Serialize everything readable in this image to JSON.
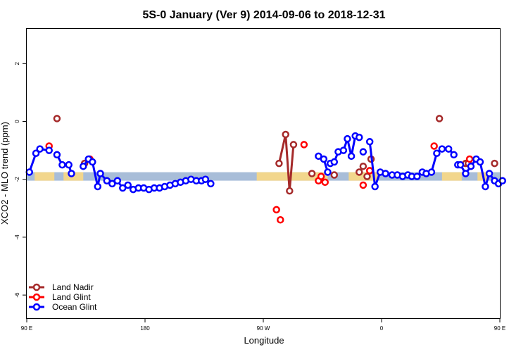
{
  "chart_data": {
    "type": "line",
    "title": "5S-0 January (Ver 9)   2014-09-06 to 2018-12-31",
    "xlabel": "Longitude",
    "ylabel": "XCO2 - MLO trend (ppm)",
    "xlim": [
      90,
      450
    ],
    "ylim": [
      -6.8,
      3.2
    ],
    "x_ticks": [
      {
        "value": 90,
        "label": "90 E"
      },
      {
        "value": 180,
        "label": "180"
      },
      {
        "value": 270,
        "label": "90 W"
      },
      {
        "value": 360,
        "label": "0"
      },
      {
        "value": 450,
        "label": "90 E"
      },
      {
        "value": 540,
        "label": "180"
      }
    ],
    "y_ticks": [
      {
        "value": 2,
        "label": "2"
      },
      {
        "value": 0,
        "label": "0"
      },
      {
        "value": -2,
        "label": "-2"
      },
      {
        "value": -4,
        "label": "-4"
      },
      {
        "value": -6,
        "label": "-6"
      }
    ],
    "legend_position": "bottom-left",
    "series": [
      {
        "name": "Land Nadir",
        "color": "#a52a2a",
        "points": [
          [
            113,
            0.1
          ],
          [
            134,
            -1.45
          ],
          [
            282,
            -1.45
          ],
          [
            287,
            -0.45
          ],
          [
            290,
            -2.4
          ],
          [
            293,
            -0.8
          ],
          [
            307,
            -1.8
          ],
          [
            324,
            -1.85
          ],
          [
            343,
            -1.75
          ],
          [
            346,
            -1.55
          ],
          [
            349,
            -1.9
          ],
          [
            352,
            -1.3
          ],
          [
            404,
            0.1
          ],
          [
            424,
            -1.45
          ],
          [
            426,
            -1.45
          ],
          [
            446,
            -1.45
          ]
        ],
        "segments": [
          [
            2,
            3,
            4,
            5
          ]
        ]
      },
      {
        "name": "Land Glint",
        "color": "#ff0000",
        "points": [
          [
            107,
            -0.85
          ],
          [
            138,
            -1.3
          ],
          [
            280,
            -3.05
          ],
          [
            283,
            -3.4
          ],
          [
            301,
            -0.8
          ],
          [
            312,
            -2.05
          ],
          [
            314,
            -1.9
          ],
          [
            317,
            -2.1
          ],
          [
            346,
            -2.2
          ],
          [
            351,
            -1.7
          ],
          [
            400,
            -0.85
          ],
          [
            427,
            -1.3
          ]
        ],
        "segments": []
      },
      {
        "name": "Ocean Glint",
        "color": "#0000ff",
        "points": [
          [
            92,
            -1.75
          ],
          [
            97,
            -1.1
          ],
          [
            100,
            -0.95
          ],
          [
            107,
            -1.0
          ],
          [
            113,
            -1.15
          ],
          [
            117,
            -1.5
          ],
          [
            122,
            -1.5
          ],
          [
            124,
            -1.8
          ],
          [
            133,
            -1.55
          ],
          [
            137,
            -1.3
          ],
          [
            140,
            -1.4
          ],
          [
            144,
            -2.25
          ],
          [
            146,
            -1.8
          ],
          [
            151,
            -2.05
          ],
          [
            155,
            -2.15
          ],
          [
            159,
            -2.05
          ],
          [
            163,
            -2.3
          ],
          [
            167,
            -2.2
          ],
          [
            171,
            -2.35
          ],
          [
            175,
            -2.3
          ],
          [
            179,
            -2.3
          ],
          [
            183,
            -2.35
          ],
          [
            187,
            -2.3
          ],
          [
            191,
            -2.3
          ],
          [
            195,
            -2.25
          ],
          [
            199,
            -2.2
          ],
          [
            203,
            -2.15
          ],
          [
            207,
            -2.1
          ],
          [
            211,
            -2.05
          ],
          [
            215,
            -2.0
          ],
          [
            219,
            -2.05
          ],
          [
            223,
            -2.05
          ],
          [
            226,
            -2.0
          ],
          [
            230,
            -2.15
          ],
          [
            312,
            -1.2
          ],
          [
            316,
            -1.3
          ],
          [
            319,
            -1.75
          ],
          [
            321,
            -1.45
          ],
          [
            324,
            -1.4
          ],
          [
            327,
            -1.05
          ],
          [
            331,
            -1.0
          ],
          [
            334,
            -0.6
          ],
          [
            337,
            -1.2
          ],
          [
            340,
            -0.5
          ],
          [
            343,
            -0.55
          ],
          [
            346,
            -1.05
          ],
          [
            351,
            -0.7
          ],
          [
            355,
            -2.25
          ],
          [
            359,
            -1.75
          ],
          [
            363,
            -1.8
          ],
          [
            368,
            -1.85
          ],
          [
            372,
            -1.85
          ],
          [
            376,
            -1.9
          ],
          [
            380,
            -1.85
          ],
          [
            383,
            -1.9
          ],
          [
            387,
            -1.9
          ],
          [
            391,
            -1.75
          ],
          [
            394,
            -1.8
          ],
          [
            398,
            -1.75
          ],
          [
            402,
            -1.1
          ],
          [
            406,
            -0.95
          ],
          [
            411,
            -0.95
          ],
          [
            415,
            -1.15
          ],
          [
            418,
            -1.5
          ],
          [
            420,
            -1.5
          ],
          [
            424,
            -1.8
          ],
          [
            428,
            -1.55
          ],
          [
            432,
            -1.3
          ],
          [
            435,
            -1.4
          ],
          [
            439,
            -2.25
          ],
          [
            442,
            -1.8
          ],
          [
            446,
            -2.05
          ],
          [
            449,
            -2.15
          ],
          [
            452,
            -2.05
          ]
        ],
        "segments": [
          [
            0,
            1,
            2,
            3
          ],
          [
            4,
            5,
            6,
            7
          ],
          [
            8,
            9,
            10,
            11,
            12,
            13,
            14,
            15,
            16,
            17,
            18,
            19,
            20,
            21,
            22,
            23,
            24,
            25,
            26,
            27,
            28,
            29,
            30,
            31,
            32,
            33
          ],
          [
            34,
            35,
            36
          ],
          [
            37,
            38,
            39,
            40,
            41,
            42,
            43,
            44
          ],
          [
            46,
            47,
            48,
            49,
            50,
            51,
            52,
            53,
            54,
            55,
            56,
            57,
            58,
            59,
            60,
            61,
            62
          ],
          [
            63,
            64,
            65,
            66,
            67,
            68,
            69,
            70,
            71,
            72,
            73
          ]
        ]
      }
    ],
    "background_band": {
      "y_center": -1.9,
      "ocean_color": "#a8bdd8",
      "land_color": "#f2d68c"
    }
  }
}
